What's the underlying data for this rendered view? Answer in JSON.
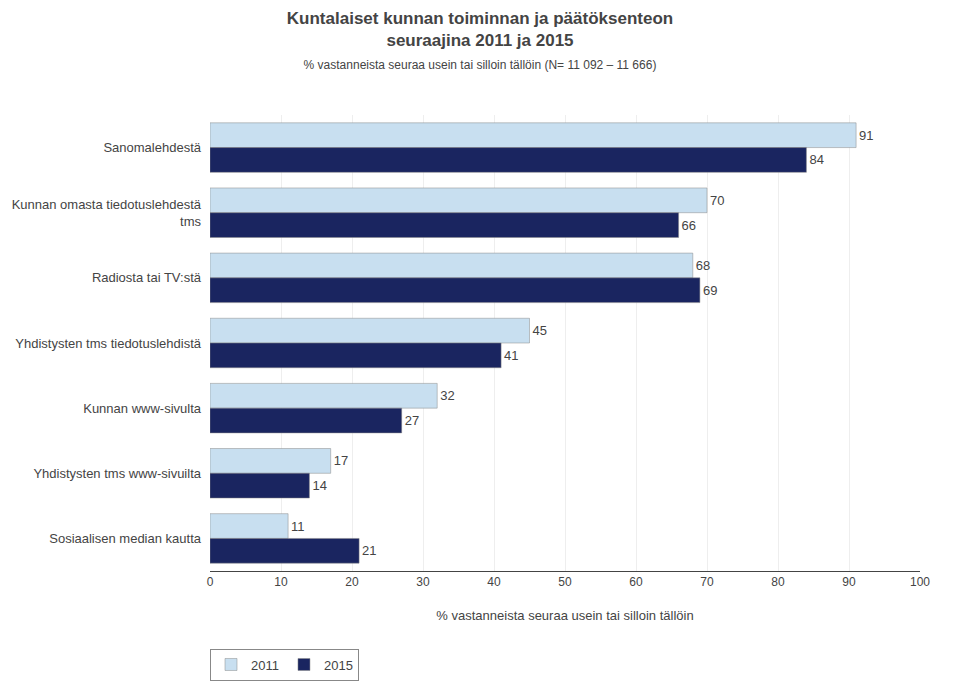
{
  "chart_data": {
    "type": "bar",
    "orientation": "horizontal",
    "title": "Kuntalaiset kunnan toiminnan ja päätöksenteon\nseuraajina 2011 ja 2015",
    "subtitle": "% vastanneista seuraa usein tai silloin tällöin (N= 11 092 – 11 666)",
    "xlabel": "% vastanneista seuraa usein tai silloin tällöin",
    "categories": [
      "Sanomalehdestä",
      "Kunnan omasta tiedotuslehdestä\ntms",
      "Radiosta tai TV:stä",
      "Yhdistysten tms tiedotuslehdistä",
      "Kunnan www-sivulta",
      "Yhdistysten tms www-sivuilta",
      "Sosiaalisen median kautta"
    ],
    "series": [
      {
        "name": "2011",
        "color": "#c8dff0",
        "values": [
          91,
          70,
          68,
          45,
          32,
          17,
          11
        ]
      },
      {
        "name": "2015",
        "color": "#1a2560",
        "values": [
          84,
          66,
          69,
          41,
          27,
          14,
          21
        ]
      }
    ],
    "xlim": [
      0,
      100
    ],
    "xticks": [
      0,
      10,
      20,
      30,
      40,
      50,
      60,
      70,
      80,
      90,
      100
    ],
    "grid": true,
    "legend": "lower left",
    "data_labels": true
  }
}
